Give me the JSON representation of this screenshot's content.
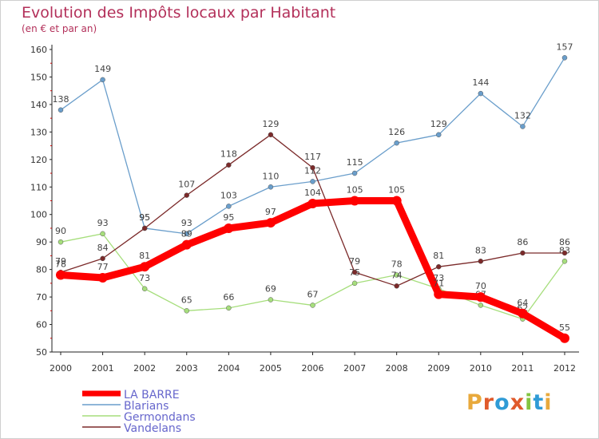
{
  "header": {
    "title": "Evolution des Impôts locaux par Habitant",
    "subtitle": "(en € et par an)"
  },
  "logo": {
    "text": "Proxiti",
    "letters": [
      "P",
      "r",
      "o",
      "x",
      "i",
      "t",
      "i"
    ],
    "colors": [
      "#e8a93c",
      "#e05a2b",
      "#2f9bd6",
      "#e05a2b",
      "#84c441",
      "#2f9bd6",
      "#e8a93c"
    ]
  },
  "chart_data": {
    "type": "line",
    "title": "Evolution des Impôts locaux par Habitant",
    "subtitle": "(en € et par an)",
    "xlabel": "",
    "ylabel": "",
    "categories": [
      "2000",
      "2001",
      "2002",
      "2003",
      "2004",
      "2005",
      "2006",
      "2007",
      "2008",
      "2009",
      "2010",
      "2011",
      "2012"
    ],
    "ylim": [
      50,
      160
    ],
    "yticks": [
      50,
      60,
      70,
      80,
      90,
      100,
      110,
      120,
      130,
      140,
      150,
      160
    ],
    "grid": false,
    "legend": "bottom-left",
    "series": [
      {
        "name": "Blarians",
        "color": "#6a9ecb",
        "values": [
          138,
          149,
          95,
          93,
          103,
          110,
          112,
          115,
          126,
          129,
          144,
          132,
          157
        ],
        "labels": [
          "138",
          "149",
          "95",
          "93",
          "103",
          "110",
          "112",
          "115",
          "126",
          "129",
          "144",
          "132",
          "157"
        ]
      },
      {
        "name": "Germondans",
        "color": "#a6de7c",
        "values": [
          90,
          93,
          73,
          65,
          66,
          69,
          67,
          75,
          78,
          73,
          67,
          62,
          83
        ],
        "labels": [
          "90",
          "93",
          "73",
          "65",
          "66",
          "69",
          "67",
          "75",
          "78",
          "73",
          "67",
          "62",
          "83"
        ]
      },
      {
        "name": "Vandelans",
        "color": "#7b2a2a",
        "values": [
          79,
          84,
          95,
          107,
          118,
          129,
          117,
          79,
          74,
          81,
          83,
          86,
          86
        ],
        "labels": [
          "79",
          "84",
          "95",
          "107",
          "118",
          "129",
          "117",
          "79",
          "74",
          "81",
          "83",
          "86",
          "86"
        ]
      },
      {
        "name": "LA BARRE",
        "color": "#ff0000",
        "values": [
          78,
          77,
          81,
          89,
          95,
          97,
          104,
          105,
          105,
          71,
          70,
          64,
          55
        ],
        "labels": [
          "78",
          "77",
          "81",
          "89",
          "95",
          "97",
          "104",
          "105",
          "105",
          "71",
          "70",
          "64",
          "55"
        ]
      }
    ],
    "legend_order": [
      "LA BARRE",
      "Blarians",
      "Germondans",
      "Vandelans"
    ]
  }
}
